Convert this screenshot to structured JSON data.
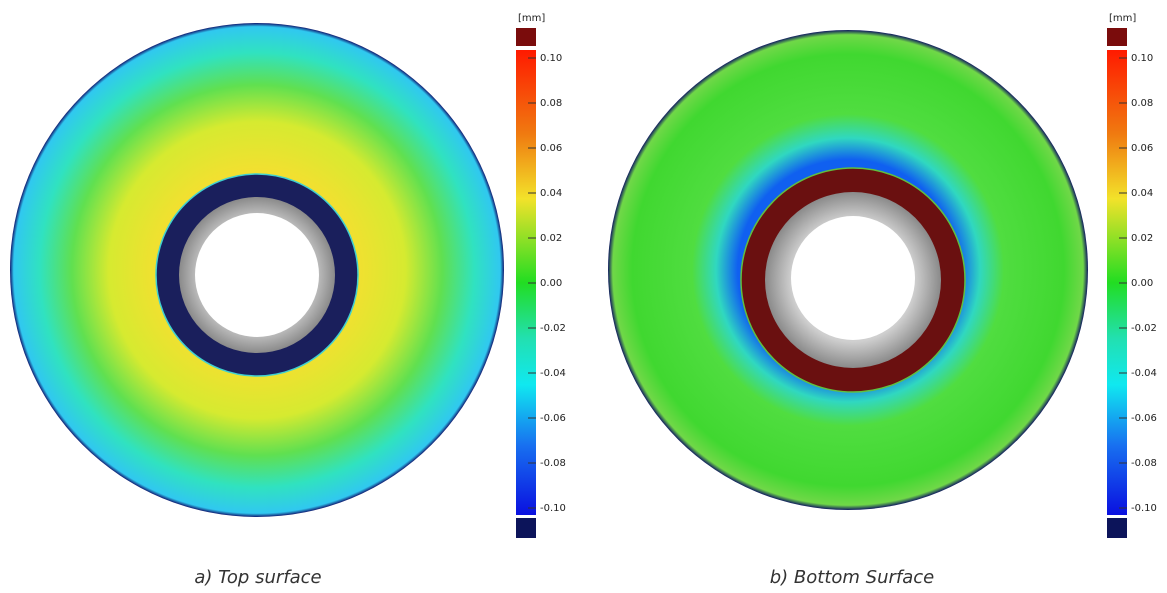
{
  "panels": [
    {
      "caption": "a) Top surface",
      "unit": "[mm]",
      "ticks": [
        {
          "value": 0.1,
          "label": "0.10"
        },
        {
          "value": 0.08,
          "label": "0.08"
        },
        {
          "value": 0.06,
          "label": "0.06"
        },
        {
          "value": 0.04,
          "label": "0.04"
        },
        {
          "value": 0.02,
          "label": "0.02"
        },
        {
          "value": 0,
          "label": "0.00"
        },
        {
          "value": -0.02,
          "label": "-0.02"
        },
        {
          "value": -0.04,
          "label": "-0.04"
        },
        {
          "value": -0.06,
          "label": "-0.06"
        },
        {
          "value": -0.08,
          "label": "-0.08"
        },
        {
          "value": -0.1,
          "label": "-0.10"
        }
      ]
    },
    {
      "caption": "b) Bottom Surface",
      "unit": "[mm]",
      "ticks": [
        {
          "value": 0.1,
          "label": "0.10"
        },
        {
          "value": 0.08,
          "label": "0.08"
        },
        {
          "value": 0.06,
          "label": "0.06"
        },
        {
          "value": 0.04,
          "label": "0.04"
        },
        {
          "value": 0.02,
          "label": "0.02"
        },
        {
          "value": 0,
          "label": "0.00"
        },
        {
          "value": -0.02,
          "label": "-0.02"
        },
        {
          "value": -0.04,
          "label": "-0.04"
        },
        {
          "value": -0.06,
          "label": "-0.06"
        },
        {
          "value": -0.08,
          "label": "-0.08"
        },
        {
          "value": -0.1,
          "label": "-0.10"
        }
      ]
    }
  ]
}
